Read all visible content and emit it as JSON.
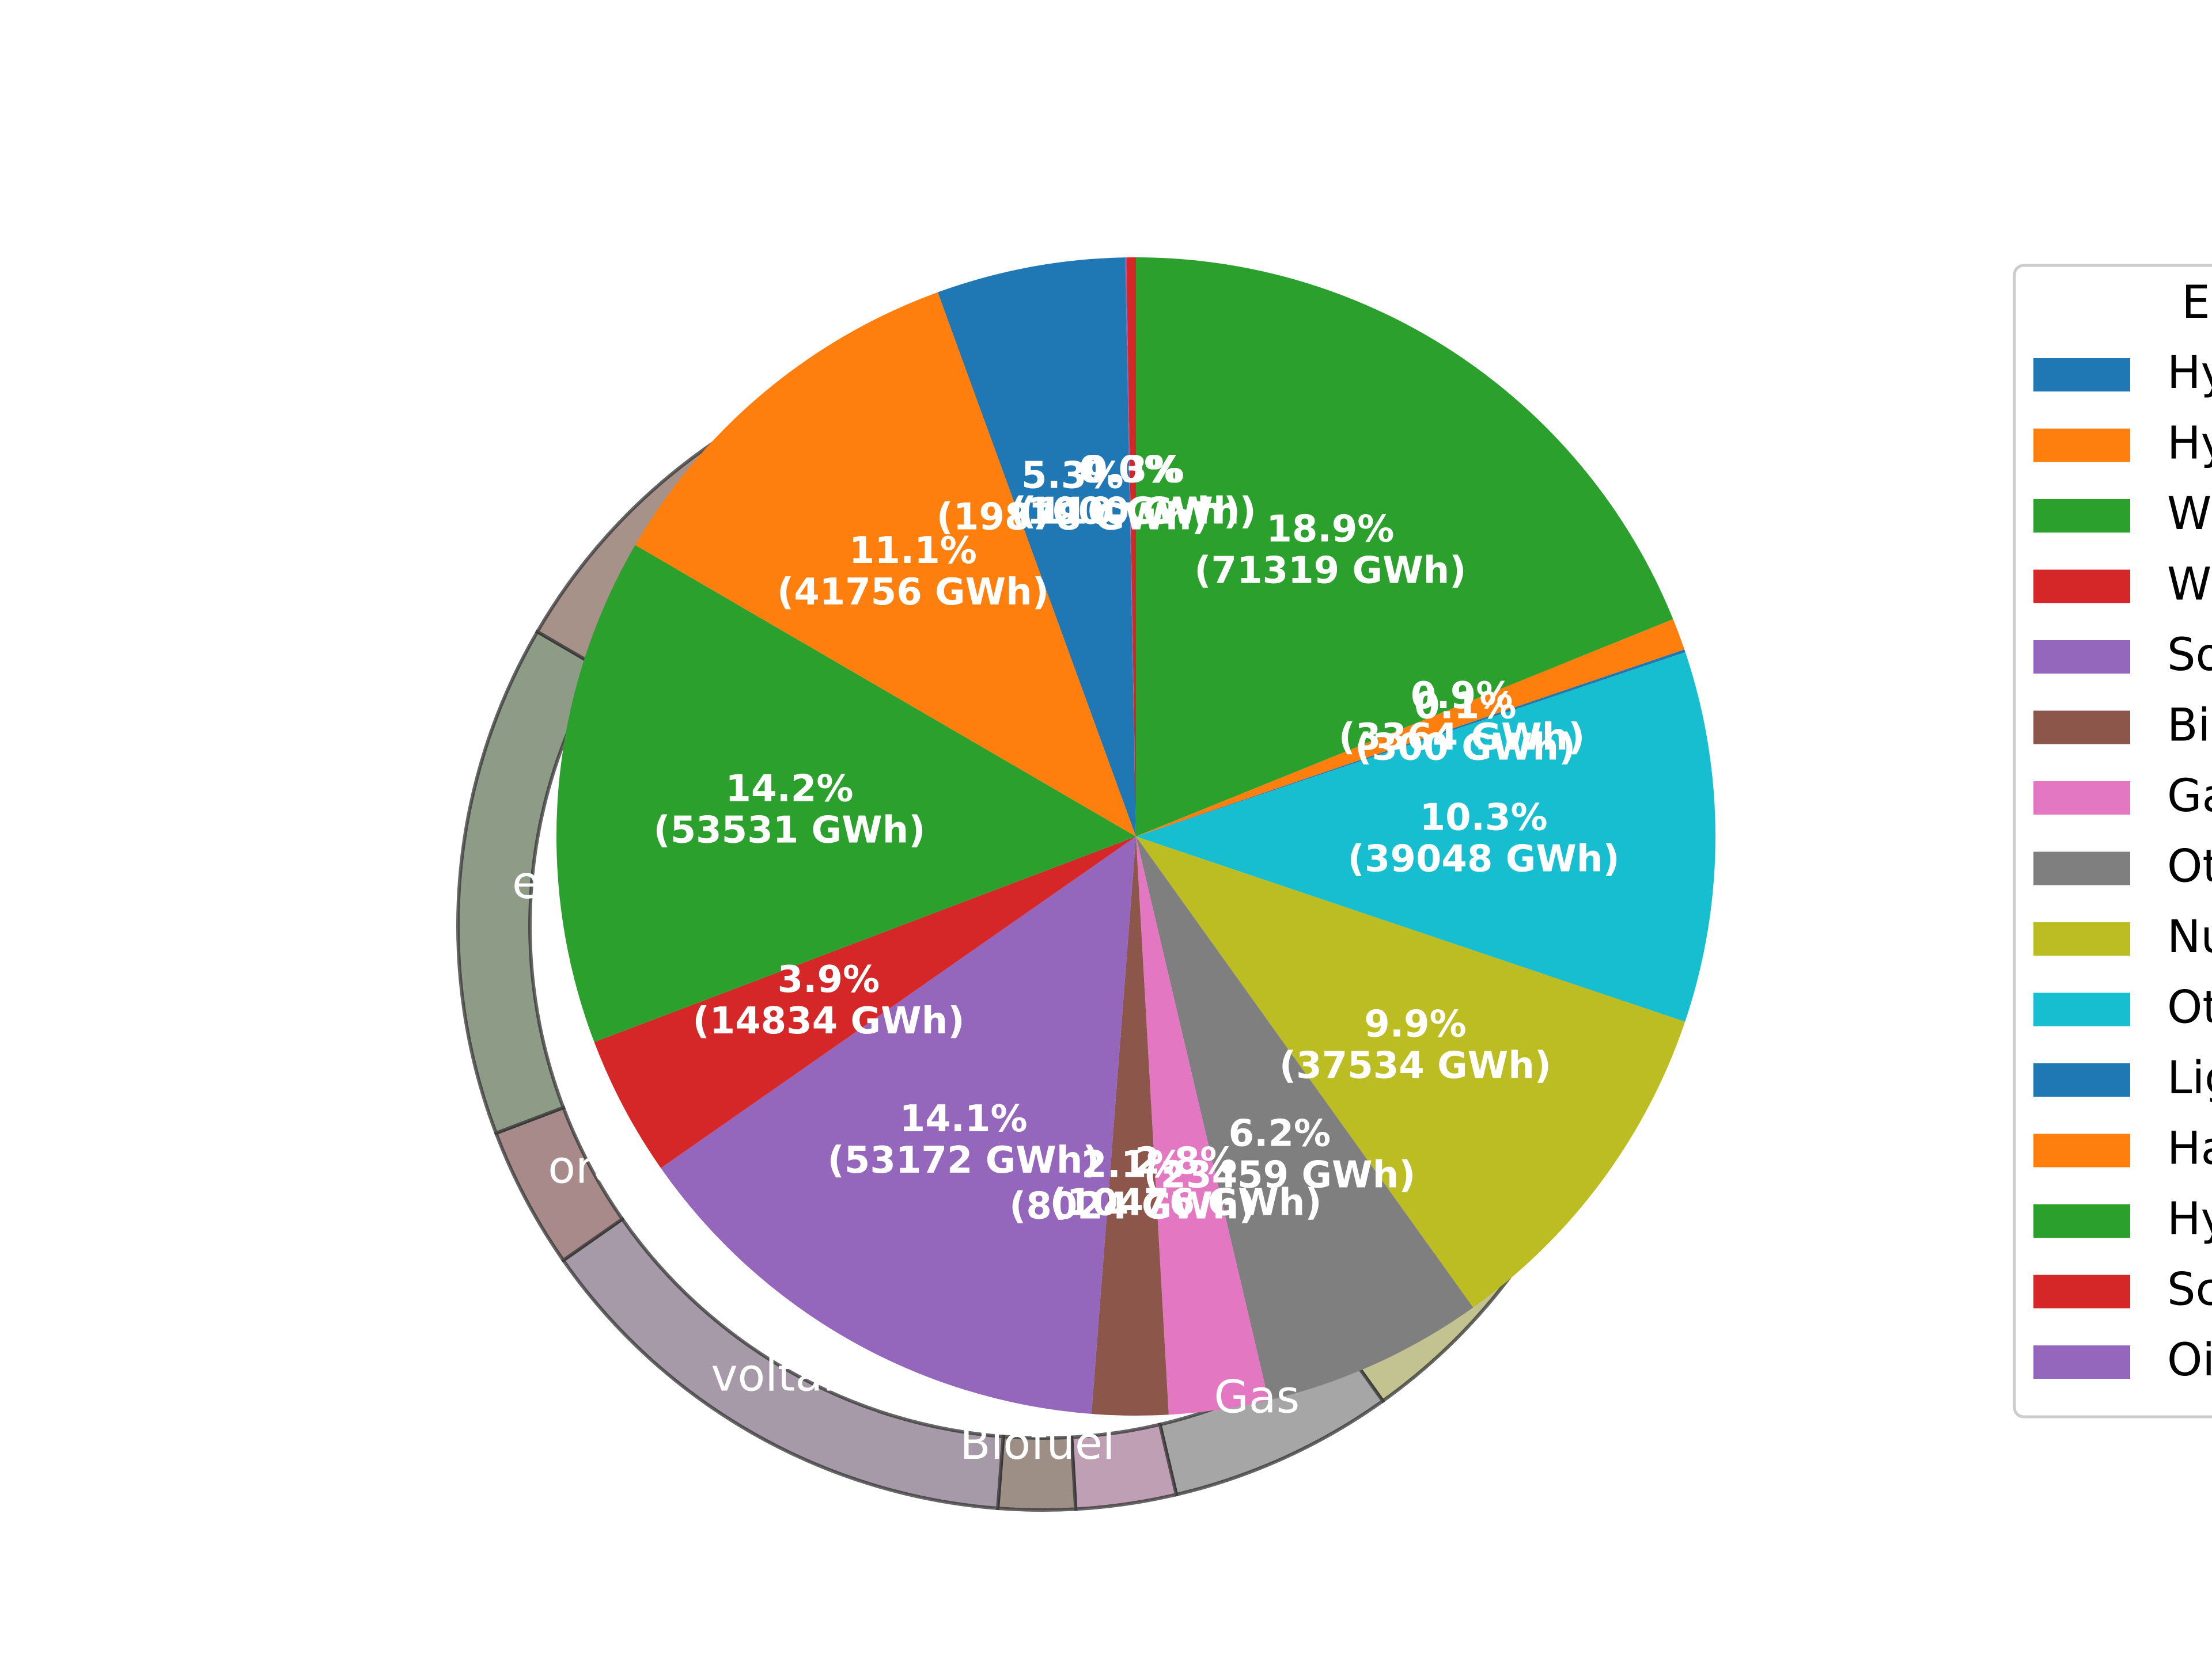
{
  "chart_data": {
    "type": "pie",
    "unit": "GWh",
    "legend": {
      "title": "E",
      "placement": "right",
      "entries": [
        {
          "label": "Hy",
          "color": "#1f77b4"
        },
        {
          "label": "Hy",
          "color": "#ff7f0e"
        },
        {
          "label": "W",
          "color": "#2ca02c"
        },
        {
          "label": "W",
          "color": "#d62728"
        },
        {
          "label": "So",
          "color": "#9467bd"
        },
        {
          "label": "Bi",
          "color": "#8c564b"
        },
        {
          "label": "Ga",
          "color": "#e377c2"
        },
        {
          "label": "Ot",
          "color": "#7f7f7f"
        },
        {
          "label": "Nu",
          "color": "#bcbd22"
        },
        {
          "label": "Ot",
          "color": "#17becf"
        },
        {
          "label": "Lig",
          "color": "#1f77b4"
        },
        {
          "label": "Ha",
          "color": "#ff7f0e"
        },
        {
          "label": "Hy",
          "color": "#2ca02c"
        },
        {
          "label": "Sc",
          "color": "#d62728"
        },
        {
          "label": "Oi",
          "color": "#9467bd"
        }
      ]
    },
    "inner": {
      "slices": [
        {
          "value": 71319,
          "pct": "18.9%",
          "gwh": "(71319 GWh)",
          "color": "#2ca02c"
        },
        {
          "value": 3364,
          "pct": "0.9%",
          "gwh": "(3364 GWh)",
          "color": "#ff7f0e"
        },
        {
          "value": 300,
          "pct": "0.1%",
          "gwh": "(300 GWh)",
          "color": "#1f77b4"
        },
        {
          "value": 39048,
          "pct": "10.3%",
          "gwh": "(39048 GWh)",
          "color": "#17becf"
        },
        {
          "value": 37534,
          "pct": "9.9%",
          "gwh": "(37534 GWh)",
          "color": "#bcbd22"
        },
        {
          "value": 23459,
          "pct": "6.2%",
          "gwh": "(23459 GWh)",
          "color": "#7f7f7f"
        },
        {
          "value": 10476,
          "pct": "2.8%",
          "gwh": "(10476 GWh)",
          "color": "#e377c2"
        },
        {
          "value": 8024,
          "pct": "2.1%",
          "gwh": "(8024 GWh)",
          "color": "#8c564b"
        },
        {
          "value": 53172,
          "pct": "14.1%",
          "gwh": "(53172 GWh)",
          "color": "#9467bd"
        },
        {
          "value": 14834,
          "pct": "3.9%",
          "gwh": "(14834 GWh)",
          "color": "#d62728"
        },
        {
          "value": 53531,
          "pct": "14.2%",
          "gwh": "(53531 GWh)",
          "color": "#2ca02c"
        },
        {
          "value": 41756,
          "pct": "11.1%",
          "gwh": "(41756 GWh)",
          "color": "#ff7f0e"
        },
        {
          "value": 19878,
          "pct": "5.3%",
          "gwh": "(19878 GWh)",
          "color": "#1f77b4"
        },
        {
          "value": 110,
          "pct": "0.0%",
          "gwh": "(110 GWh)",
          "color": "#9467bd"
        },
        {
          "value": 1000,
          "pct": "0.3%",
          "gwh": "(1000 GWh)",
          "color": "#d62728"
        }
      ]
    },
    "outer": {
      "ring_labels": [
        "Biofuel",
        "Gas",
        "voltaic",
        "ore",
        "e"
      ],
      "segments": [
        {
          "value": 71319,
          "color": "#c3c391",
          "label": ""
        },
        {
          "value": 3364,
          "color": "#c3c391",
          "label": ""
        },
        {
          "value": 300,
          "color": "#c3c391",
          "label": ""
        },
        {
          "value": 39048,
          "color": "#c3c391",
          "label": ""
        },
        {
          "value": 37534,
          "color": "#c3c391",
          "label": ""
        },
        {
          "value": 23459,
          "color": "#a6a6a6",
          "label": "Gas"
        },
        {
          "value": 10476,
          "color": "#bf9fb4",
          "label": ""
        },
        {
          "value": 8024,
          "color": "#9d8e86",
          "label": "Biofuel"
        },
        {
          "value": 53172,
          "color": "#a69aa8",
          "label": "voltaic"
        },
        {
          "value": 14834,
          "color": "#a88a8a",
          "label": "ore"
        },
        {
          "value": 53531,
          "color": "#8e9b87",
          "label": "e"
        },
        {
          "value": 41756,
          "color": "#a79289",
          "label": ""
        },
        {
          "value": 19878,
          "color": "#c3c391",
          "label": ""
        },
        {
          "value": 110,
          "color": "#c3c391",
          "label": ""
        },
        {
          "value": 1000,
          "color": "#c3c391",
          "label": ""
        }
      ]
    }
  }
}
